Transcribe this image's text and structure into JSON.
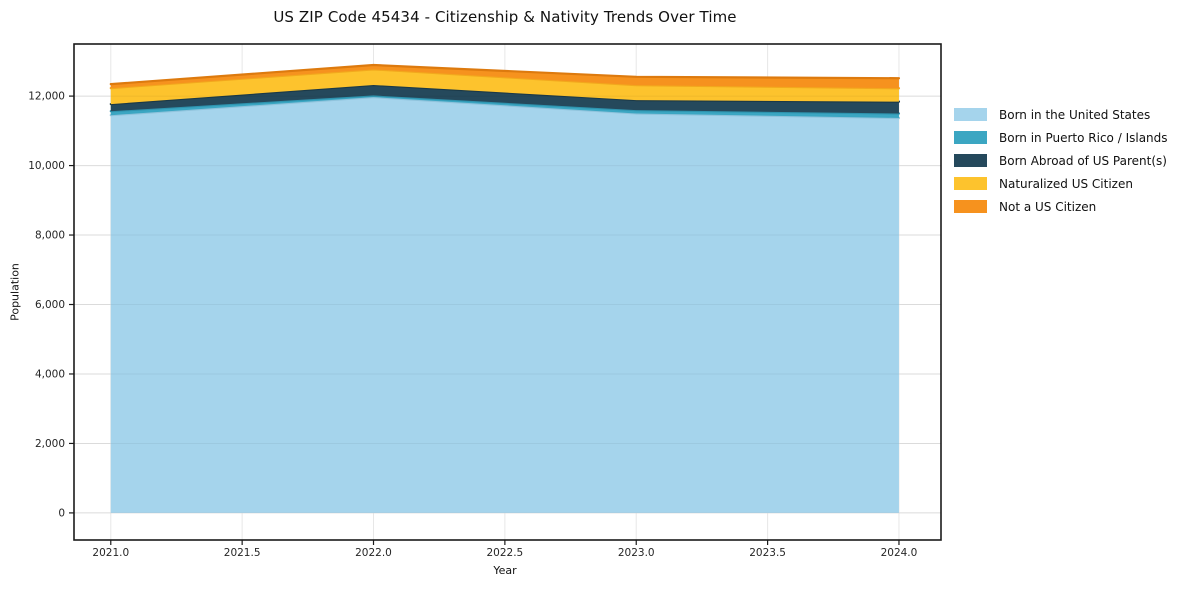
{
  "chart_data": {
    "type": "area",
    "stacked": true,
    "title": "US ZIP Code 45434 - Citizenship & Nativity Trends Over Time",
    "xlabel": "Year",
    "ylabel": "Population",
    "x": [
      2021,
      2022,
      2023,
      2024
    ],
    "series": [
      {
        "name": "Born in the United States",
        "values": [
          11450,
          11970,
          11500,
          11370
        ],
        "fill": "#A5D4EC",
        "edge": "#8FC3DC"
      },
      {
        "name": "Born in Puerto Rico / Islands",
        "values": [
          115,
          50,
          95,
          130
        ],
        "fill": "#3BA6C2",
        "edge": "#2E93AE"
      },
      {
        "name": "Born Abroad of US Parent(s)",
        "values": [
          205,
          300,
          290,
          340
        ],
        "fill": "#25495C",
        "edge": "#1B3947"
      },
      {
        "name": "Naturalized US Citizen",
        "values": [
          460,
          450,
          430,
          385
        ],
        "fill": "#FDC32D",
        "edge": "#F2A81D"
      },
      {
        "name": "Not a US Citizen",
        "values": [
          115,
          125,
          240,
          290
        ],
        "fill": "#F6921E",
        "edge": "#DD7A0E"
      }
    ],
    "stack_totals": [
      12345,
      12895,
      12555,
      12515
    ],
    "xticks": {
      "values": [
        2021.0,
        2021.5,
        2022.0,
        2022.5,
        2023.0,
        2023.5,
        2024.0
      ],
      "labels": [
        "2021.0",
        "2021.5",
        "2022.0",
        "2022.5",
        "2023.0",
        "2023.5",
        "2024.0"
      ]
    },
    "yticks": {
      "values": [
        0,
        2000,
        4000,
        6000,
        8000,
        10000,
        12000
      ],
      "labels": [
        "0",
        "2,000",
        "4,000",
        "6,000",
        "8,000",
        "10,000",
        "12,000"
      ]
    },
    "xlim": [
      2020.86,
      2024.16
    ],
    "ylim": [
      -780,
      13500
    ],
    "grid": true,
    "legend_position": "right",
    "colors": {
      "spine": "#1a1a1a",
      "grid": "#e7e7e7",
      "tick_label": "#262626"
    }
  }
}
